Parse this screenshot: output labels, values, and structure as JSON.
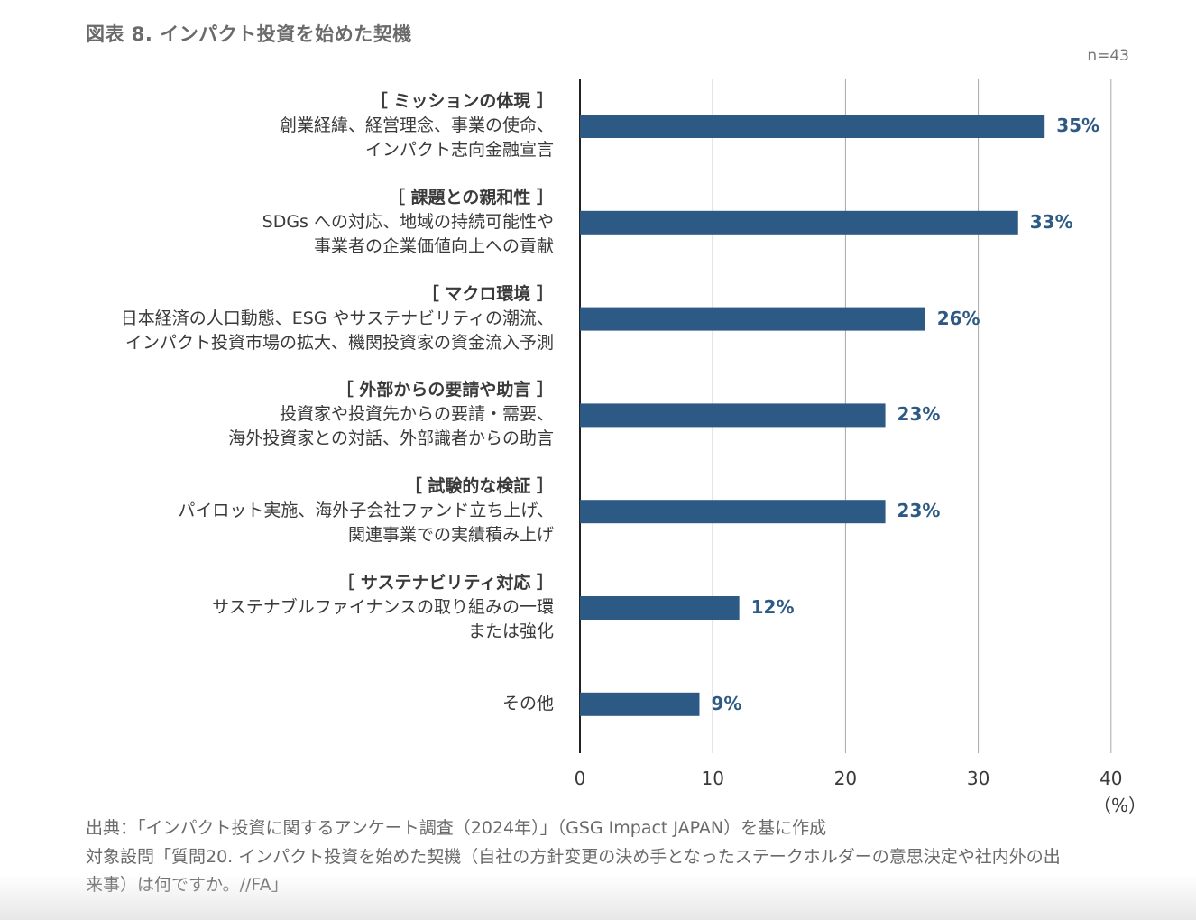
{
  "title": "図表 8. インパクト投資を始めた契機",
  "n_label": "n=43",
  "unit_label": "（%）",
  "chart_data": {
    "type": "bar",
    "orientation": "horizontal",
    "xlim": [
      0,
      40
    ],
    "x_ticks": [
      0,
      10,
      20,
      30,
      40
    ],
    "grid": true,
    "categories": [
      {
        "head": "［ ミッションの体現 ］",
        "lines": [
          "創業経緯、経営理念、事業の使命、",
          "インパクト志向金融宣言"
        ],
        "value": 35,
        "label": "35%"
      },
      {
        "head": "［ 課題との親和性 ］",
        "lines": [
          "SDGs への対応、地域の持続可能性や",
          "事業者の企業価値向上への貢献"
        ],
        "value": 33,
        "label": "33%"
      },
      {
        "head": "［ マクロ環境 ］",
        "lines": [
          "日本経済の人口動態、ESG やサステナビリティの潮流、",
          "インパクト投資市場の拡大、機関投資家の資金流入予測"
        ],
        "value": 26,
        "label": "26%"
      },
      {
        "head": "［ 外部からの要請や助言 ］",
        "lines": [
          "投資家や投資先からの要請・需要、",
          "海外投資家との対話、外部識者からの助言"
        ],
        "value": 23,
        "label": "23%"
      },
      {
        "head": "［ 試験的な検証 ］",
        "lines": [
          "パイロット実施、海外子会社ファンド立ち上げ、",
          "関連事業での実績積み上げ"
        ],
        "value": 23,
        "label": "23%"
      },
      {
        "head": "［ サステナビリティ対応 ］",
        "lines": [
          "サステナブルファイナンスの取り組みの一環",
          "または強化"
        ],
        "value": 12,
        "label": "12%"
      },
      {
        "head": "",
        "lines": [
          "その他"
        ],
        "value": 9,
        "label": "9%"
      }
    ],
    "colors": {
      "bar": "#2d5a85",
      "axis": "#222222",
      "grid": "#a8a8a8",
      "value_label": "#2d5a85"
    }
  },
  "footer": {
    "source": "出典：「インパクト投資に関するアンケート調査（2024年）」（GSG Impact JAPAN）を基に作成",
    "question_line1": "対象設問「質問20. インパクト投資を始めた契機（自社の方針変更の決め手となったステークホルダーの意思決定や社内外の出",
    "question_line2": "来事）は何ですか。//FA」"
  }
}
